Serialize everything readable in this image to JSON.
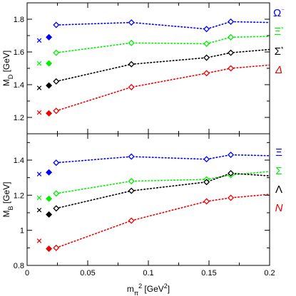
{
  "chart_data": [
    {
      "type": "scatter",
      "ylabel": "M_D [GeV]",
      "ylabel_main": "M",
      "ylabel_sub": "D",
      "ylabel_unit": " [GeV]",
      "xlim": [
        0,
        0.2
      ],
      "ylim": [
        1.1,
        1.9
      ],
      "x_ticks": [
        "0",
        "0.05",
        "0.1",
        "0.15",
        "0.2"
      ],
      "y_ticks": [
        1.2,
        1.4,
        1.6,
        1.8
      ],
      "y_tick_labels": [
        "1.2",
        "1.4",
        "1.6",
        "1.8"
      ],
      "legend": "right",
      "series": [
        {
          "name": "Ω",
          "sup": "⁻",
          "color": "#0000ff",
          "cross": [
            0.01,
            1.67
          ],
          "filled": [
            {
              "x": 0.018,
              "y": 1.69,
              "err": 0.03
            }
          ],
          "open": [
            {
              "x": 0.024,
              "y": 1.765,
              "err": 0.01
            },
            {
              "x": 0.086,
              "y": 1.78,
              "err": 0.03
            },
            {
              "x": 0.148,
              "y": 1.74,
              "err": 0.01
            },
            {
              "x": 0.168,
              "y": 1.785,
              "err": 0.05
            }
          ],
          "fit": [
            [
              0.024,
              1.765
            ],
            [
              0.086,
              1.78
            ],
            [
              0.148,
              1.74
            ],
            [
              0.168,
              1.785
            ],
            [
              0.2,
              1.78
            ]
          ]
        },
        {
          "name": "Ξ",
          "sup": "*",
          "color": "#00ee00",
          "cross": [
            0.01,
            1.53
          ],
          "filled": [
            {
              "x": 0.018,
              "y": 1.53,
              "err": 0.04
            }
          ],
          "open": [
            {
              "x": 0.024,
              "y": 1.595,
              "err": 0.03
            },
            {
              "x": 0.086,
              "y": 1.655,
              "err": 0.025
            },
            {
              "x": 0.148,
              "y": 1.65,
              "err": 0.015
            },
            {
              "x": 0.168,
              "y": 1.69,
              "err": 0.02
            }
          ],
          "fit": [
            [
              0.024,
              1.595
            ],
            [
              0.086,
              1.655
            ],
            [
              0.148,
              1.65
            ],
            [
              0.168,
              1.69
            ],
            [
              0.2,
              1.695
            ]
          ]
        },
        {
          "name": "Σ",
          "sup": "*",
          "color": "#000000",
          "cross": [
            0.01,
            1.38
          ],
          "filled": [
            {
              "x": 0.018,
              "y": 1.395,
              "err": 0.05
            }
          ],
          "open": [
            {
              "x": 0.024,
              "y": 1.42,
              "err": 0.06
            },
            {
              "x": 0.086,
              "y": 1.525,
              "err": 0.03
            },
            {
              "x": 0.148,
              "y": 1.565,
              "err": 0.02
            },
            {
              "x": 0.168,
              "y": 1.595,
              "err": 0.03
            }
          ],
          "fit": [
            [
              0.024,
              1.42
            ],
            [
              0.086,
              1.525
            ],
            [
              0.148,
              1.565
            ],
            [
              0.168,
              1.595
            ],
            [
              0.2,
              1.615
            ]
          ]
        },
        {
          "name": "Δ",
          "sup": "",
          "color": "#ee0000",
          "cross": [
            0.01,
            1.23
          ],
          "filled": [
            {
              "x": 0.018,
              "y": 1.225,
              "err": 0.08
            }
          ],
          "open": [
            {
              "x": 0.024,
              "y": 1.24,
              "err": 0.11
            },
            {
              "x": 0.086,
              "y": 1.385,
              "err": 0.035
            },
            {
              "x": 0.148,
              "y": 1.47,
              "err": 0.03
            },
            {
              "x": 0.168,
              "y": 1.5,
              "err": 0.03
            }
          ],
          "fit": [
            [
              0.024,
              1.24
            ],
            [
              0.086,
              1.385
            ],
            [
              0.148,
              1.47
            ],
            [
              0.168,
              1.5
            ],
            [
              0.2,
              1.52
            ]
          ]
        }
      ]
    },
    {
      "type": "scatter",
      "xlabel": "m_π^2 [GeV^2]",
      "xlabel_main": "m",
      "xlabel_sub": "π",
      "xlabel_sup": "2",
      "xlabel_unit_a": " [GeV",
      "xlabel_unit_sup": "2",
      "xlabel_unit_b": "]",
      "ylabel": "M_B [GeV]",
      "ylabel_main": "M",
      "ylabel_sub": "B",
      "ylabel_unit": " [GeV]",
      "xlim": [
        0,
        0.2
      ],
      "ylim": [
        0.8,
        1.55
      ],
      "x_ticks": [
        "0",
        "0.05",
        "0.1",
        "0.15",
        "0.2"
      ],
      "y_ticks": [
        0.8,
        1.0,
        1.2,
        1.4
      ],
      "y_tick_labels": [
        "0.8",
        "1",
        "1.2",
        "1.4"
      ],
      "legend": "right",
      "series": [
        {
          "name": "Ξ",
          "sup": "",
          "color": "#0000ff",
          "cross": [
            0.01,
            1.32
          ],
          "filled": [
            {
              "x": 0.018,
              "y": 1.33,
              "err": 0.02
            }
          ],
          "open": [
            {
              "x": 0.024,
              "y": 1.385,
              "err": 0.01
            },
            {
              "x": 0.086,
              "y": 1.42,
              "err": 0.025
            },
            {
              "x": 0.148,
              "y": 1.405,
              "err": 0.01
            },
            {
              "x": 0.168,
              "y": 1.43,
              "err": 0.07
            }
          ],
          "fit": [
            [
              0.024,
              1.385
            ],
            [
              0.086,
              1.42
            ],
            [
              0.148,
              1.405
            ],
            [
              0.168,
              1.43
            ],
            [
              0.2,
              1.425
            ]
          ]
        },
        {
          "name": "Σ",
          "sup": "",
          "color": "#00ee00",
          "cross": [
            0.01,
            1.185
          ],
          "filled": [
            {
              "x": 0.018,
              "y": 1.18,
              "err": 0.025
            }
          ],
          "open": [
            {
              "x": 0.024,
              "y": 1.21,
              "err": 0.025
            },
            {
              "x": 0.086,
              "y": 1.28,
              "err": 0.03
            },
            {
              "x": 0.148,
              "y": 1.29,
              "err": 0.015
            },
            {
              "x": 0.168,
              "y": 1.315,
              "err": 0.02
            }
          ],
          "fit": [
            [
              0.024,
              1.21
            ],
            [
              0.086,
              1.28
            ],
            [
              0.148,
              1.29
            ],
            [
              0.168,
              1.315
            ],
            [
              0.2,
              1.335
            ]
          ]
        },
        {
          "name": "Λ",
          "sup": "",
          "color": "#000000",
          "cross": [
            0.01,
            1.115
          ],
          "filled": [
            {
              "x": 0.018,
              "y": 1.09,
              "err": 0.025
            }
          ],
          "open": [
            {
              "x": 0.024,
              "y": 1.125,
              "err": 0.02
            },
            {
              "x": 0.086,
              "y": 1.225,
              "err": 0.03
            },
            {
              "x": 0.148,
              "y": 1.275,
              "err": 0.015
            },
            {
              "x": 0.168,
              "y": 1.325,
              "err": 0.05
            }
          ],
          "fit": [
            [
              0.024,
              1.125
            ],
            [
              0.086,
              1.225
            ],
            [
              0.148,
              1.275
            ],
            [
              0.168,
              1.325
            ],
            [
              0.2,
              1.31
            ]
          ]
        },
        {
          "name": "N",
          "sup": "",
          "color": "#ee0000",
          "cross": [
            0.01,
            0.94
          ],
          "filled": [
            {
              "x": 0.018,
              "y": 0.895,
              "err": 0.05
            }
          ],
          "open": [
            {
              "x": 0.024,
              "y": 0.9,
              "err": 0.1
            },
            {
              "x": 0.086,
              "y": 1.055,
              "err": 0.05
            },
            {
              "x": 0.148,
              "y": 1.165,
              "err": 0.015
            },
            {
              "x": 0.168,
              "y": 1.185,
              "err": 0.03
            }
          ],
          "fit": [
            [
              0.024,
              0.9
            ],
            [
              0.086,
              1.055
            ],
            [
              0.148,
              1.165
            ],
            [
              0.168,
              1.185
            ],
            [
              0.2,
              1.205
            ]
          ]
        }
      ]
    }
  ]
}
